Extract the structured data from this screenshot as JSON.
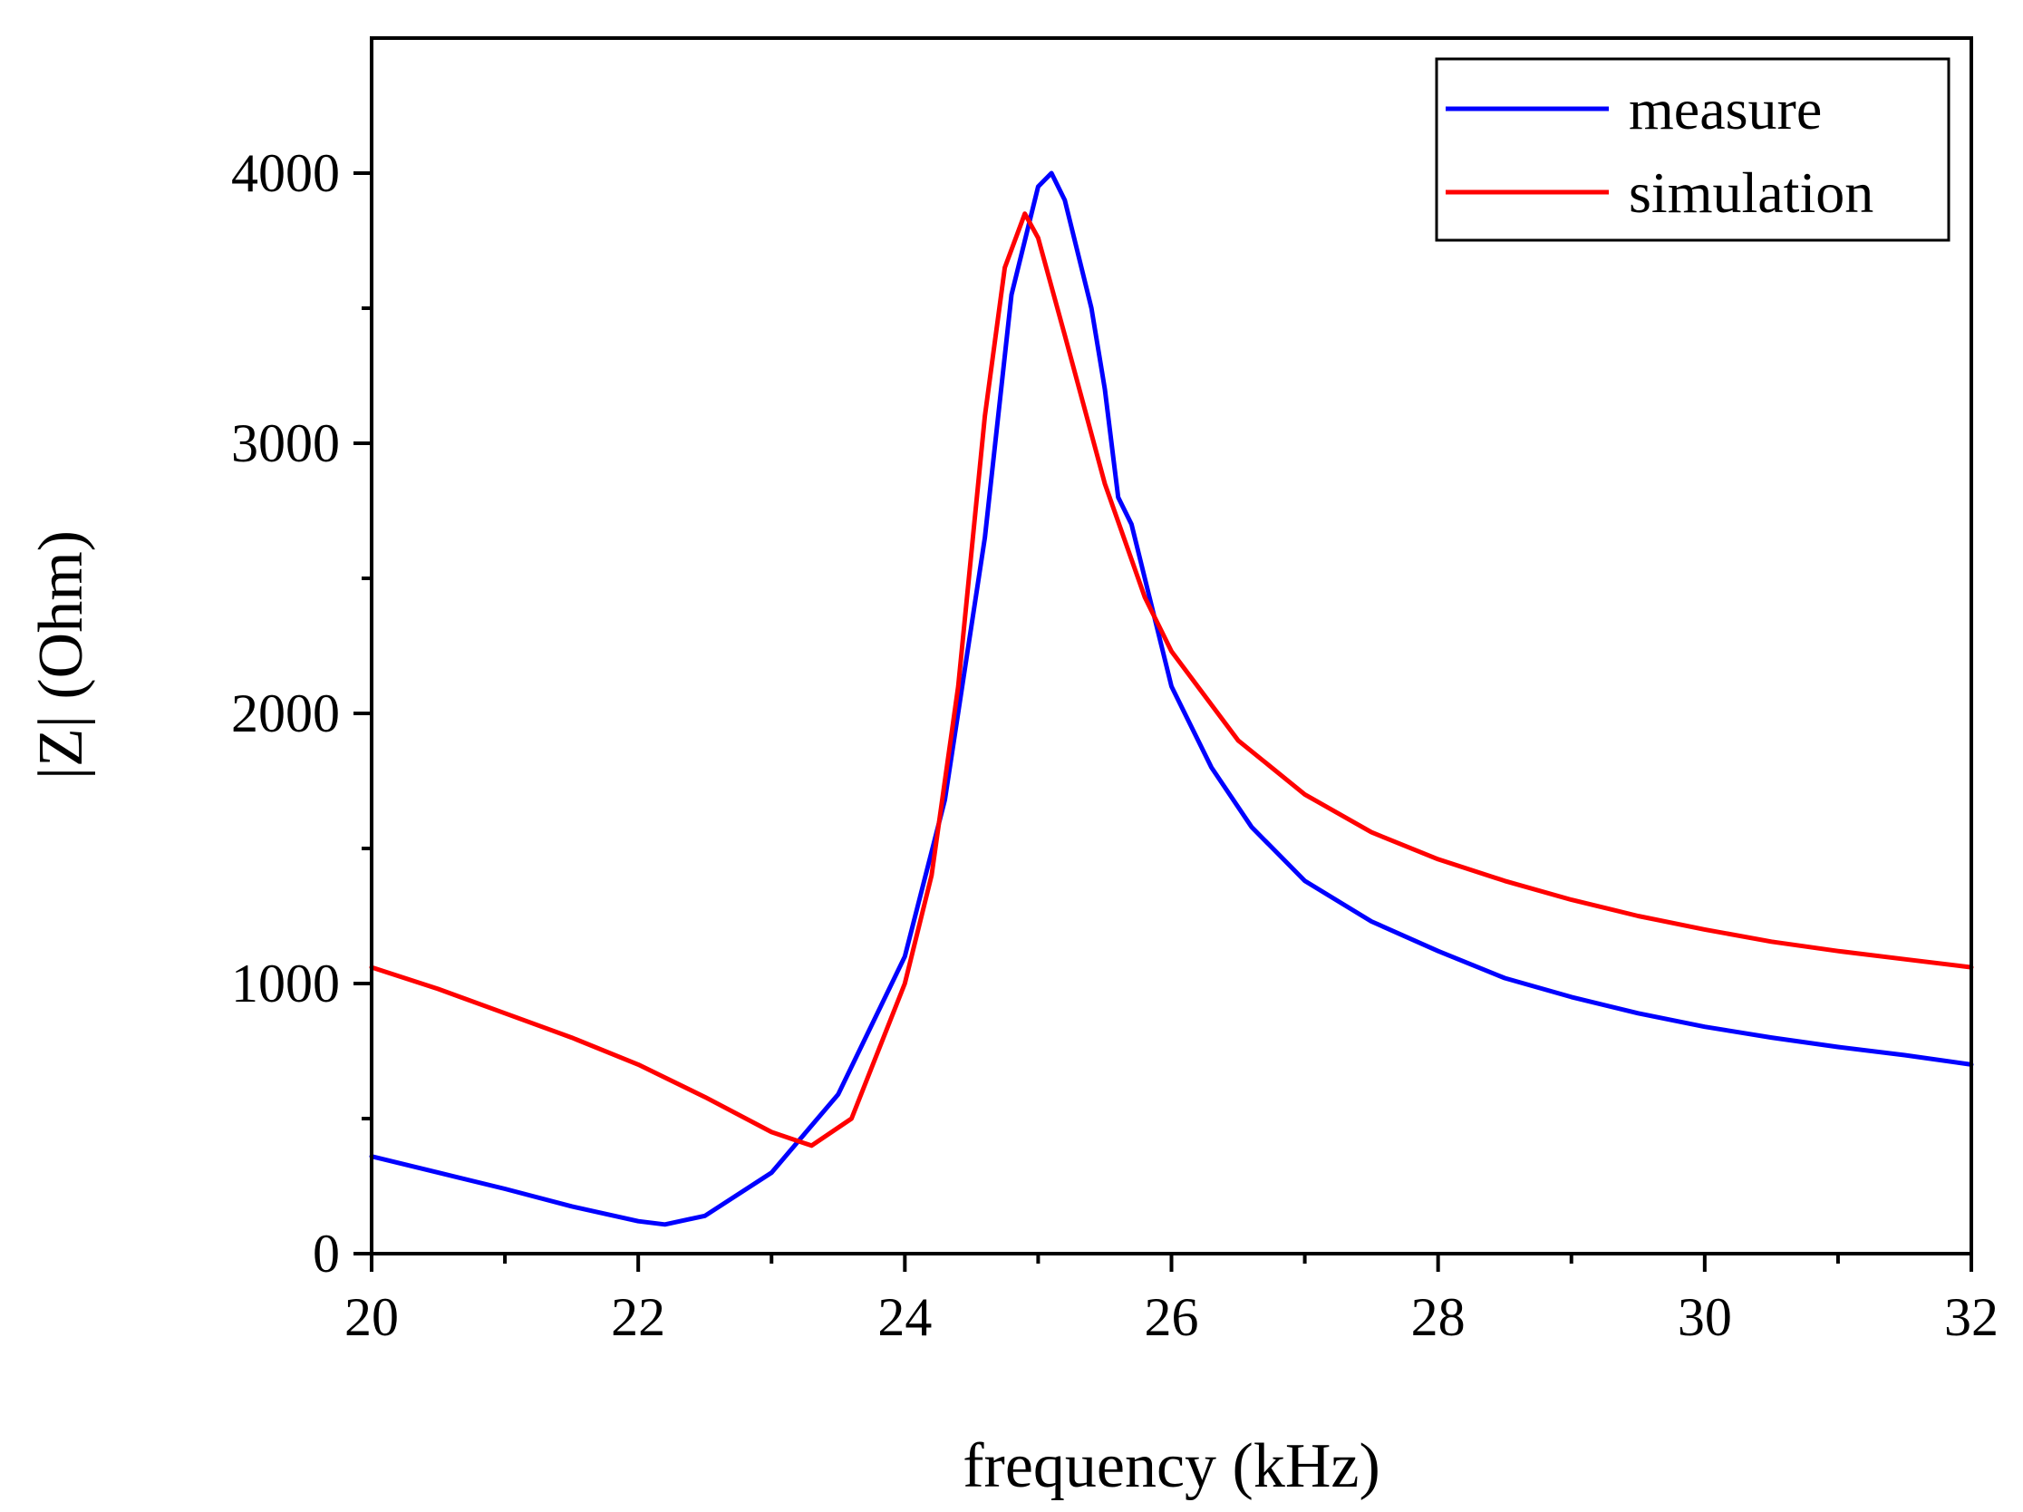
{
  "chart_data": {
    "type": "line",
    "title": "",
    "xlabel": "frequency (kHz)",
    "ylabel": "|Z| (Ohm)",
    "xlim": [
      20,
      32
    ],
    "ylim": [
      0,
      4500
    ],
    "xticks": [
      20,
      22,
      24,
      26,
      28,
      30,
      32
    ],
    "yticks": [
      0,
      1000,
      2000,
      3000,
      4000
    ],
    "x_minor_step": 1,
    "y_minor_step": 500,
    "grid": false,
    "legend_position": "top-right",
    "series": [
      {
        "name": "measure",
        "color": "#0000ff",
        "points": [
          [
            20,
            360
          ],
          [
            20.5,
            300
          ],
          [
            21,
            240
          ],
          [
            21.5,
            175
          ],
          [
            22,
            120
          ],
          [
            22.2,
            108
          ],
          [
            22.5,
            140
          ],
          [
            23,
            300
          ],
          [
            23.5,
            590
          ],
          [
            24,
            1100
          ],
          [
            24.3,
            1680
          ],
          [
            24.6,
            2650
          ],
          [
            24.8,
            3550
          ],
          [
            25,
            3950
          ],
          [
            25.1,
            4000
          ],
          [
            25.2,
            3900
          ],
          [
            25.4,
            3500
          ],
          [
            25.5,
            3200
          ],
          [
            25.6,
            2800
          ],
          [
            25.7,
            2700
          ],
          [
            25.8,
            2500
          ],
          [
            26,
            2100
          ],
          [
            26.3,
            1800
          ],
          [
            26.6,
            1580
          ],
          [
            27,
            1380
          ],
          [
            27.5,
            1230
          ],
          [
            28,
            1120
          ],
          [
            28.5,
            1020
          ],
          [
            29,
            950
          ],
          [
            29.5,
            890
          ],
          [
            30,
            840
          ],
          [
            30.5,
            800
          ],
          [
            31,
            765
          ],
          [
            31.5,
            735
          ],
          [
            32,
            700
          ]
        ]
      },
      {
        "name": "simulation",
        "color": "#ff0000",
        "points": [
          [
            20,
            1060
          ],
          [
            20.5,
            980
          ],
          [
            21,
            890
          ],
          [
            21.5,
            800
          ],
          [
            22,
            700
          ],
          [
            22.5,
            580
          ],
          [
            23,
            450
          ],
          [
            23.3,
            400
          ],
          [
            23.6,
            500
          ],
          [
            24,
            1000
          ],
          [
            24.2,
            1400
          ],
          [
            24.4,
            2100
          ],
          [
            24.6,
            3100
          ],
          [
            24.75,
            3650
          ],
          [
            24.9,
            3850
          ],
          [
            25,
            3760
          ],
          [
            25.2,
            3400
          ],
          [
            25.5,
            2850
          ],
          [
            25.8,
            2430
          ],
          [
            26,
            2230
          ],
          [
            26.5,
            1900
          ],
          [
            27,
            1700
          ],
          [
            27.5,
            1560
          ],
          [
            28,
            1460
          ],
          [
            28.5,
            1380
          ],
          [
            29,
            1310
          ],
          [
            29.5,
            1250
          ],
          [
            30,
            1200
          ],
          [
            30.5,
            1155
          ],
          [
            31,
            1120
          ],
          [
            31.5,
            1090
          ],
          [
            32,
            1060
          ]
        ]
      }
    ]
  }
}
